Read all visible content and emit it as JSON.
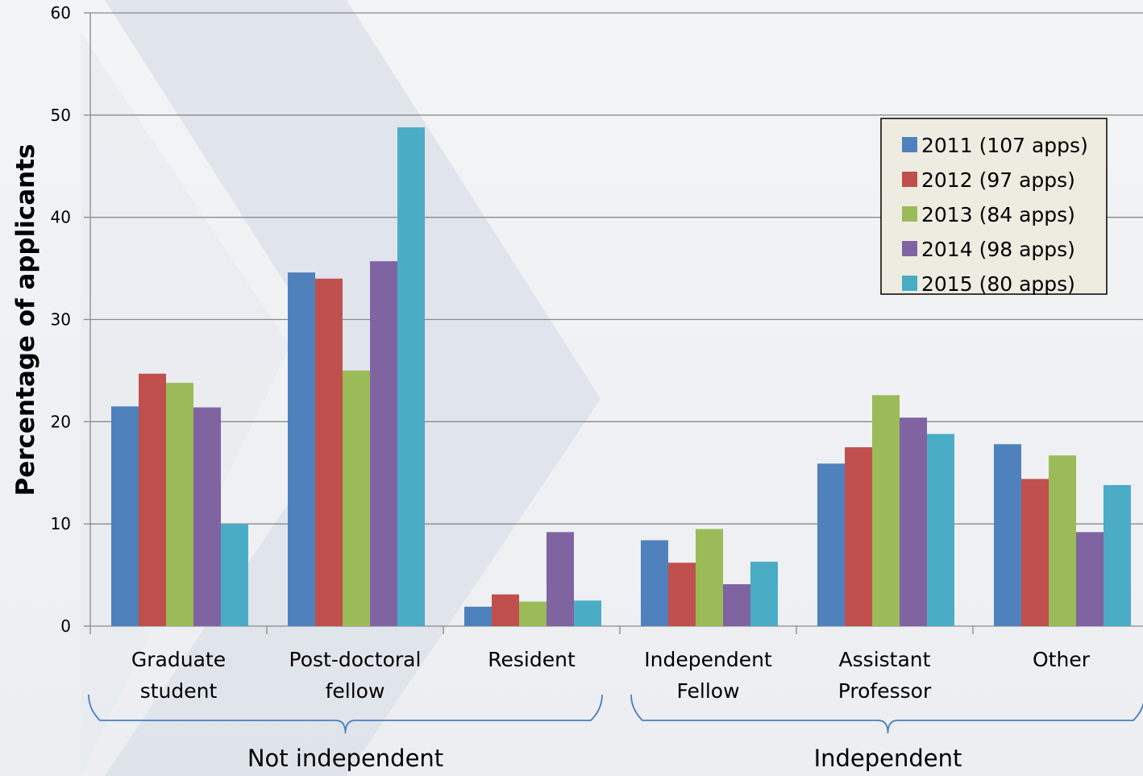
{
  "chart_data": {
    "type": "bar",
    "ylabel": "Percentage of applicants",
    "xlabel": "",
    "ylim": [
      0,
      60
    ],
    "yticks": [
      0,
      10,
      20,
      30,
      40,
      50,
      60
    ],
    "grid": true,
    "legend_position": "top-right",
    "categories": [
      [
        "Graduate",
        "student"
      ],
      [
        "Post-doctoral",
        "fellow"
      ],
      [
        "Resident"
      ],
      [
        "Independent",
        "Fellow"
      ],
      [
        "Assistant",
        "Professor"
      ],
      [
        "Other"
      ]
    ],
    "groups": [
      {
        "label": "Not independent",
        "categories": [
          0,
          1,
          2
        ]
      },
      {
        "label": "Independent",
        "categories": [
          3,
          4,
          5
        ]
      }
    ],
    "series": [
      {
        "name": "2011 (107 apps)",
        "color": "#4f81bd",
        "values": [
          21.5,
          34.6,
          1.9,
          8.4,
          15.9,
          17.8
        ]
      },
      {
        "name": "2012 (97 apps)",
        "color": "#c0504d",
        "values": [
          24.7,
          34.0,
          3.1,
          6.2,
          17.5,
          14.4
        ]
      },
      {
        "name": "2013 (84 apps)",
        "color": "#9bbb59",
        "values": [
          23.8,
          25.0,
          2.4,
          9.5,
          22.6,
          16.7
        ]
      },
      {
        "name": "2014 (98 apps)",
        "color": "#8064a2",
        "values": [
          21.4,
          35.7,
          9.2,
          4.1,
          20.4,
          9.2
        ]
      },
      {
        "name": "2015 (80 apps)",
        "color": "#4bacc6",
        "values": [
          10.0,
          48.8,
          2.5,
          6.3,
          18.8,
          13.8
        ]
      }
    ]
  }
}
